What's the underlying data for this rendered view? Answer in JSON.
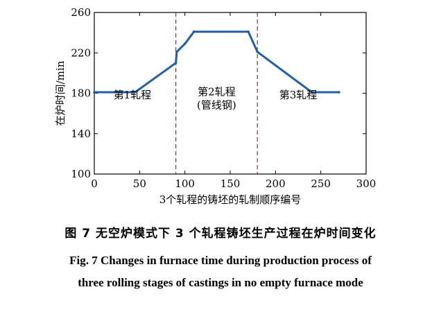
{
  "chart_data": {
    "type": "line",
    "xlabel": "3个轧程的铸坯的轧制顺序编号",
    "ylabel": "在炉时间/min",
    "xlim": [
      0,
      300
    ],
    "ylim": [
      100,
      260
    ],
    "xticks": [
      0,
      50,
      100,
      150,
      200,
      250,
      300
    ],
    "yticks": [
      100,
      140,
      180,
      220,
      260
    ],
    "line_color": "#1f5fa8",
    "divider_color": "#a0204a",
    "dividers": [
      90,
      180
    ],
    "annotations": [
      {
        "text": "第1轧程",
        "x": 42,
        "y": 175
      },
      {
        "text": "第2轧程",
        "x": 135,
        "y": 178
      },
      {
        "text": "(管线钢)",
        "x": 135,
        "y": 165
      },
      {
        "text": "第3轧程",
        "x": 225,
        "y": 175
      }
    ],
    "series": [
      {
        "x": [
          0,
          45,
          90,
          91,
          100,
          110,
          170,
          180,
          240,
          270
        ],
        "y": [
          181,
          181,
          210,
          221,
          229,
          241,
          241,
          221,
          181,
          181
        ]
      }
    ]
  },
  "caption": {
    "cn": "图 7    无空炉模式下 3 个轧程铸坯生产过程在炉时间变化",
    "en_line1": "Fig. 7    Changes in furnace time during production process of",
    "en_line2": "three rolling stages of castings in no empty furnace mode"
  }
}
